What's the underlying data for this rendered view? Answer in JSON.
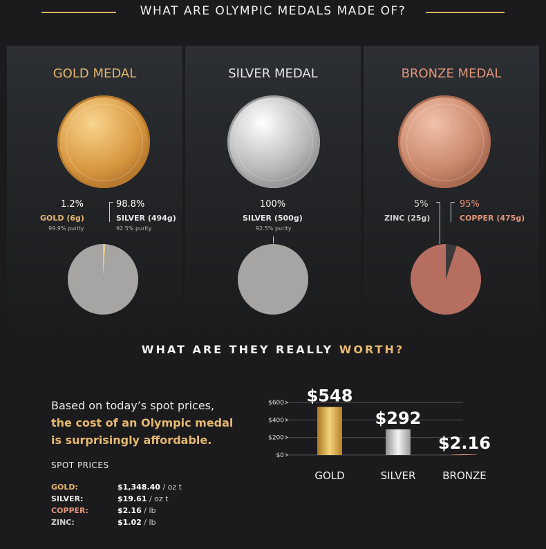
{
  "header": {
    "title": "WHAT ARE OLYMPIC MEDALS MADE OF?"
  },
  "colors": {
    "accent_gold": "#e6b86f",
    "silver_gray": "#a7a5a4",
    "bronze_copper": "#b66e61",
    "zinc_gray": "#3a3a3a",
    "gold_slice": "#e9c98c"
  },
  "medals": [
    {
      "title": "GOLD MEDAL",
      "components": [
        {
          "percent": "1.2%",
          "label": "GOLD (6g)",
          "purity": "99.9% purity"
        },
        {
          "percent": "98.8%",
          "label": "SILVER (494g)",
          "purity": "92.5% purity"
        }
      ]
    },
    {
      "title": "SILVER MEDAL",
      "components": [
        {
          "percent": "100%",
          "label": "SILVER (500g)",
          "purity": "92.5% purity"
        }
      ]
    },
    {
      "title": "BRONZE MEDAL",
      "components": [
        {
          "percent": "5%",
          "label": "ZINC (25g)"
        },
        {
          "percent": "95%",
          "label": "COPPER (475g)"
        }
      ]
    }
  ],
  "worth": {
    "title_prefix": "WHAT ARE THEY REALLY",
    "title_highlight": "WORTH?",
    "lead_line1": "Based on today’s spot prices,",
    "lead_line2": "the cost of an Olympic medal",
    "lead_line3": "is surprisingly affordable.",
    "spot_title": "SPOT PRICES",
    "spot_prices": [
      {
        "metal": "GOLD:",
        "price": "$1,348.40",
        "unit": "/ oz t"
      },
      {
        "metal": "SILVER:",
        "price": "$19.61",
        "unit": "/ oz t"
      },
      {
        "metal": "COPPER:",
        "price": "$2.16",
        "unit": "/ lb"
      },
      {
        "metal": "ZINC:",
        "price": "$1.02",
        "unit": "/ lb"
      }
    ]
  },
  "chart_data": [
    {
      "type": "pie",
      "labels": [
        "GOLD (6g)",
        "SILVER (494g)"
      ],
      "values": [
        1.2,
        98.8
      ],
      "colors": [
        "#e9c98c",
        "#a7a5a4"
      ]
    },
    {
      "type": "pie",
      "labels": [
        "SILVER (500g)"
      ],
      "values": [
        100
      ],
      "colors": [
        "#a7a5a4"
      ]
    },
    {
      "type": "pie",
      "labels": [
        "ZINC (25g)",
        "COPPER (475g)"
      ],
      "values": [
        5,
        95
      ],
      "colors": [
        "#3a3a3a",
        "#b66e61"
      ]
    },
    {
      "type": "bar",
      "categories": [
        "GOLD",
        "SILVER",
        "BRONZE"
      ],
      "values": [
        548,
        292,
        2.16
      ],
      "data_labels": [
        "$548",
        "$292",
        "$2.16"
      ],
      "yticks": [
        "$0",
        "$200",
        "$400",
        "$600"
      ],
      "ytick_values": [
        0,
        200,
        400,
        600
      ],
      "ylim": [
        0,
        600
      ],
      "grid": true
    }
  ]
}
